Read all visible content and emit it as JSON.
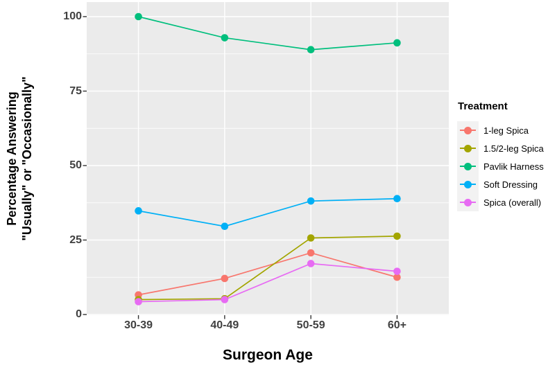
{
  "chart_data": {
    "type": "line",
    "title": "",
    "xlabel": "Surgeon Age",
    "ylabel_lines": [
      "Percentage Answering",
      "\"Usually\" or \"Occasionally\""
    ],
    "categories": [
      "30-39",
      "40-49",
      "50-59",
      "60+"
    ],
    "series": [
      {
        "name": "1-leg Spica",
        "color": "#F8766D",
        "values": [
          6.6,
          12.1,
          20.7,
          12.5
        ]
      },
      {
        "name": "1.5/2-leg Spica",
        "color": "#A3A500",
        "values": [
          5.0,
          5.3,
          25.7,
          26.3
        ]
      },
      {
        "name": "Pavlik Harness",
        "color": "#00BF7D",
        "values": [
          100,
          92.9,
          88.9,
          91.2
        ]
      },
      {
        "name": "Soft Dressing",
        "color": "#00B0F6",
        "values": [
          34.8,
          29.6,
          38.1,
          38.9
        ]
      },
      {
        "name": "Spica (overall)",
        "color": "#E76BF3",
        "values": [
          4.3,
          5.0,
          17.1,
          14.5
        ]
      }
    ],
    "legend_title": "Treatment",
    "legend_position": "right",
    "y_ticks": [
      0,
      25,
      50,
      75,
      100
    ],
    "y_minor_ticks": [
      12.5,
      37.5,
      62.5,
      87.5
    ],
    "ylim": [
      0,
      100
    ],
    "grid": "on",
    "colors": {
      "panel_bg": "#EBEBEB",
      "grid": "#FFFFFF",
      "legend_key_bg": "#F2F2F2",
      "tick_text": "#404040",
      "tick_mark": "#333333",
      "axis_title": "#000000"
    }
  }
}
